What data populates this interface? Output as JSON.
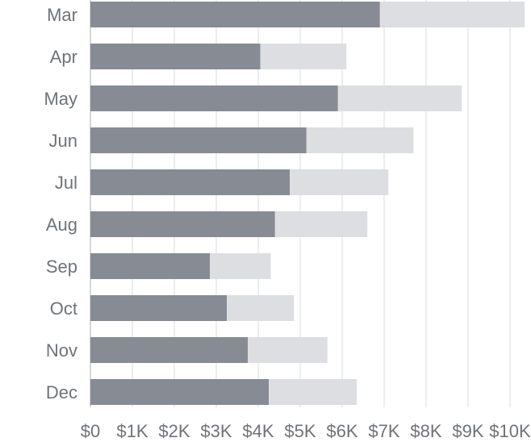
{
  "chart_data": {
    "type": "bar",
    "orientation": "horizontal",
    "stacked": true,
    "categories": [
      "Mar",
      "Apr",
      "May",
      "Jun",
      "Jul",
      "Aug",
      "Sep",
      "Oct",
      "Nov",
      "Dec"
    ],
    "series": [
      {
        "color": "#878b94",
        "values": [
          6900,
          4050,
          5900,
          5150,
          4750,
          4400,
          2850,
          3250,
          3750,
          4250
        ]
      },
      {
        "color": "#dcdee2",
        "values": [
          3450,
          2050,
          2950,
          2550,
          2350,
          2200,
          1450,
          1600,
          1900,
          2100
        ]
      }
    ],
    "x_ticks": [
      "$0",
      "$1K",
      "$2K",
      "$3K",
      "$4K",
      "$5K",
      "$6K",
      "$7K",
      "$8K",
      "$9K",
      "$10K"
    ],
    "xlim": [
      0,
      10000
    ],
    "grid": true
  },
  "colors": {
    "grid": "#e6e7ea",
    "axis": "#c9ccd1",
    "label": "#6f7378"
  }
}
